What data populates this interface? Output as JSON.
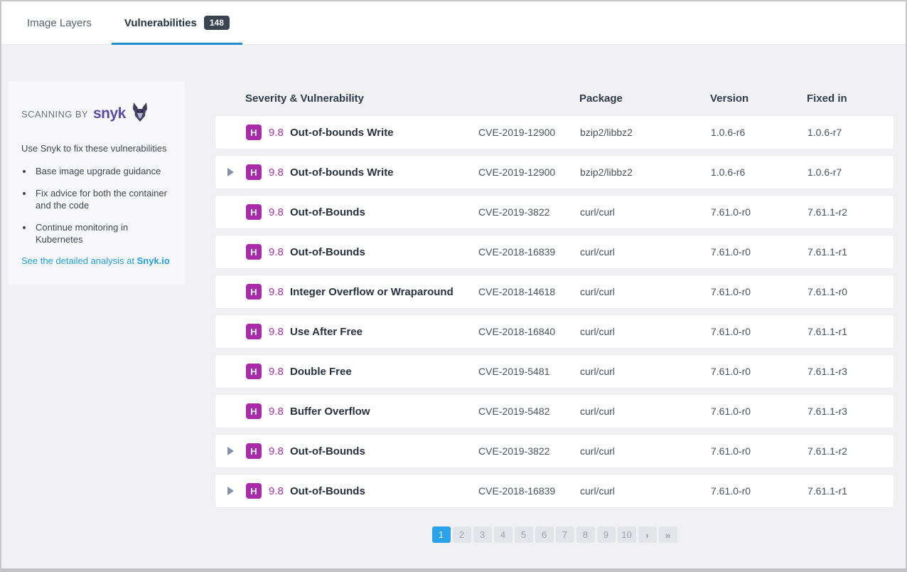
{
  "tabs": {
    "image_layers_label": "Image Layers",
    "vulnerabilities_label": "Vulnerabilities",
    "vulnerabilities_count": "148"
  },
  "sidebar": {
    "heading_prefix": "SCANNING BY",
    "brand": "snyk",
    "intro": "Use Snyk to fix these vulnerabilities",
    "bullets": [
      "Base image upgrade guidance",
      "Fix advice for both the container and the code",
      "Continue monitoring in Kubernetes"
    ],
    "link_prefix": "See the detailed analysis at ",
    "link_brand": "Snyk.io"
  },
  "table": {
    "headers": {
      "severity": "Severity & Vulnerability",
      "package": "Package",
      "version": "Version",
      "fixed_in": "Fixed in"
    },
    "rows": [
      {
        "expandable": false,
        "severity": "H",
        "score": "9.8",
        "name": "Out-of-bounds Write",
        "cve": "CVE-2019-12900",
        "package": "bzip2/libbz2",
        "version": "1.0.6-r6",
        "fixed_in": "1.0.6-r7"
      },
      {
        "expandable": true,
        "severity": "H",
        "score": "9.8",
        "name": "Out-of-bounds Write",
        "cve": "CVE-2019-12900",
        "package": "bzip2/libbz2",
        "version": "1.0.6-r6",
        "fixed_in": "1.0.6-r7"
      },
      {
        "expandable": false,
        "severity": "H",
        "score": "9.8",
        "name": "Out-of-Bounds",
        "cve": "CVE-2019-3822",
        "package": "curl/curl",
        "version": "7.61.0-r0",
        "fixed_in": "7.61.1-r2"
      },
      {
        "expandable": false,
        "severity": "H",
        "score": "9.8",
        "name": "Out-of-Bounds",
        "cve": "CVE-2018-16839",
        "package": "curl/curl",
        "version": "7.61.0-r0",
        "fixed_in": "7.61.1-r1"
      },
      {
        "expandable": false,
        "severity": "H",
        "score": "9.8",
        "name": "Integer Overflow or Wraparound",
        "cve": "CVE-2018-14618",
        "package": "curl/curl",
        "version": "7.61.0-r0",
        "fixed_in": "7.61.1-r0"
      },
      {
        "expandable": false,
        "severity": "H",
        "score": "9.8",
        "name": "Use After Free",
        "cve": "CVE-2018-16840",
        "package": "curl/curl",
        "version": "7.61.0-r0",
        "fixed_in": "7.61.1-r1"
      },
      {
        "expandable": false,
        "severity": "H",
        "score": "9.8",
        "name": "Double Free",
        "cve": "CVE-2019-5481",
        "package": "curl/curl",
        "version": "7.61.0-r0",
        "fixed_in": "7.61.1-r3"
      },
      {
        "expandable": false,
        "severity": "H",
        "score": "9.8",
        "name": "Buffer Overflow",
        "cve": "CVE-2019-5482",
        "package": "curl/curl",
        "version": "7.61.0-r0",
        "fixed_in": "7.61.1-r3"
      },
      {
        "expandable": true,
        "severity": "H",
        "score": "9.8",
        "name": "Out-of-Bounds",
        "cve": "CVE-2019-3822",
        "package": "curl/curl",
        "version": "7.61.0-r0",
        "fixed_in": "7.61.1-r2"
      },
      {
        "expandable": true,
        "severity": "H",
        "score": "9.8",
        "name": "Out-of-Bounds",
        "cve": "CVE-2018-16839",
        "package": "curl/curl",
        "version": "7.61.0-r0",
        "fixed_in": "7.61.1-r1"
      }
    ]
  },
  "pagination": {
    "pages": [
      "1",
      "2",
      "3",
      "4",
      "5",
      "6",
      "7",
      "8",
      "9",
      "10"
    ],
    "active": "1",
    "next_label": "›",
    "last_label": "»"
  },
  "colors": {
    "tab_underline": "#1e8fd0",
    "count_badge_bg": "#3a4450",
    "severity_high": "#a82ba8",
    "snyk_purple": "#584ba7",
    "link_blue": "#219ddd",
    "pagination_active": "#29a2e9"
  }
}
